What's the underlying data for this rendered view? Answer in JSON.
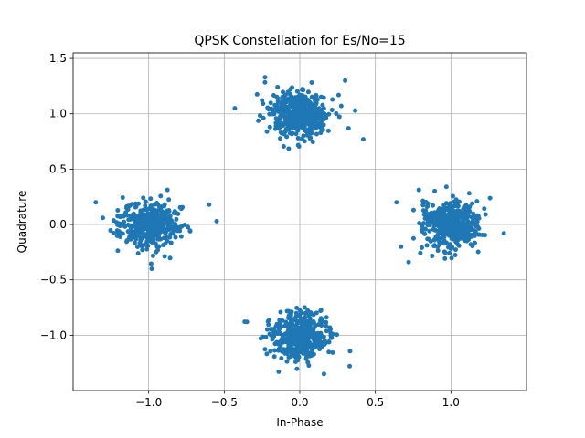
{
  "chart_data": {
    "type": "scatter",
    "title": "QPSK Constellation for Es/No=15",
    "xlabel": "In-Phase",
    "ylabel": "Quadrature",
    "xlim": [
      -1.5,
      1.5
    ],
    "ylim": [
      -1.5,
      1.55
    ],
    "xticks": [
      -1.0,
      -0.5,
      0.0,
      0.5,
      1.0
    ],
    "xtick_labels": [
      "−1.0",
      "−0.5",
      "0.0",
      "0.5",
      "1.0"
    ],
    "yticks": [
      -1.0,
      -0.5,
      0.0,
      0.5,
      1.0,
      1.5
    ],
    "ytick_labels": [
      "−1.0",
      "−0.5",
      "0.0",
      "0.5",
      "1.0",
      "1.5"
    ],
    "grid": true,
    "marker_color": "#1f77b4",
    "series": [
      {
        "constellation_points": [
          [
            0.0,
            1.0
          ],
          [
            1.0,
            0.0
          ],
          [
            0.0,
            -1.0
          ],
          [
            -1.0,
            0.0
          ]
        ],
        "points_per_cluster": 450,
        "noise_std": 0.1
      }
    ],
    "notable_outliers": [
      [
        -0.43,
        1.05
      ],
      [
        0.42,
        0.77
      ],
      [
        -0.23,
        1.33
      ],
      [
        0.3,
        1.3
      ],
      [
        -0.6,
        0.18
      ],
      [
        -0.55,
        0.03
      ],
      [
        -1.35,
        0.2
      ],
      [
        -0.98,
        -0.4
      ],
      [
        0.64,
        0.2
      ],
      [
        0.67,
        -0.2
      ],
      [
        0.72,
        -0.34
      ],
      [
        1.35,
        -0.08
      ],
      [
        0.97,
        0.34
      ],
      [
        -0.35,
        -0.88
      ],
      [
        0.33,
        -1.28
      ],
      [
        0.16,
        -1.35
      ],
      [
        -0.14,
        -1.33
      ]
    ]
  }
}
